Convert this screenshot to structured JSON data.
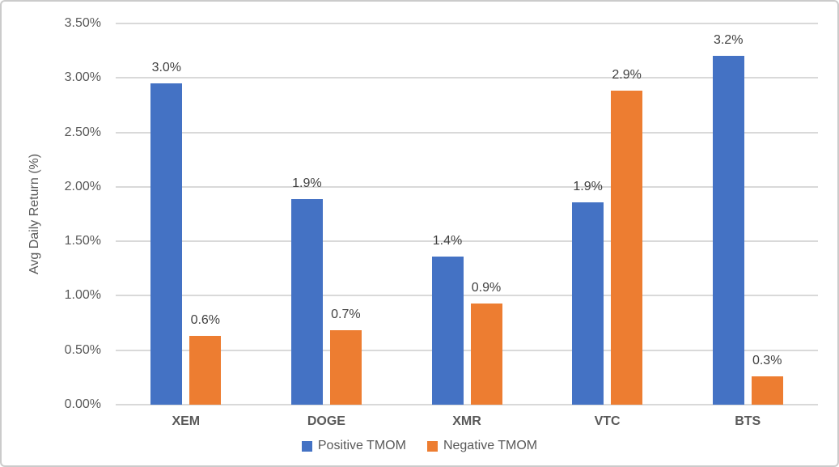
{
  "chart_data": {
    "type": "bar",
    "title": "",
    "categories": [
      "XEM",
      "DOGE",
      "XMR",
      "VTC",
      "BTS"
    ],
    "series": [
      {
        "name": "Positive TMOM",
        "color": "#4472C4",
        "values": [
          2.95,
          1.89,
          1.36,
          1.86,
          3.2
        ],
        "labels": [
          "3.0%",
          "1.9%",
          "1.4%",
          "1.9%",
          "3.2%"
        ]
      },
      {
        "name": "Negative TMOM",
        "color": "#ED7D31",
        "values": [
          0.63,
          0.68,
          0.93,
          2.88,
          0.26
        ],
        "labels": [
          "0.6%",
          "0.7%",
          "0.9%",
          "2.9%",
          "0.3%"
        ]
      }
    ],
    "xlabel": "",
    "ylabel": "Avg Daily Return (%)",
    "ylim": [
      0,
      3.5
    ],
    "ytick_step": 0.5,
    "ytick_labels": [
      "0.00%",
      "0.50%",
      "1.00%",
      "1.50%",
      "2.00%",
      "2.50%",
      "3.00%",
      "3.50%"
    ],
    "grid": true,
    "legend_position": "bottom",
    "colors": {
      "grid": "#D9D9D9",
      "tick_text": "#595959",
      "data_label_text": "#404040",
      "category_text": "#595959",
      "axis_title_text": "#595959",
      "frame_border": "#CBCBCB",
      "background": "#FFFFFF"
    }
  }
}
